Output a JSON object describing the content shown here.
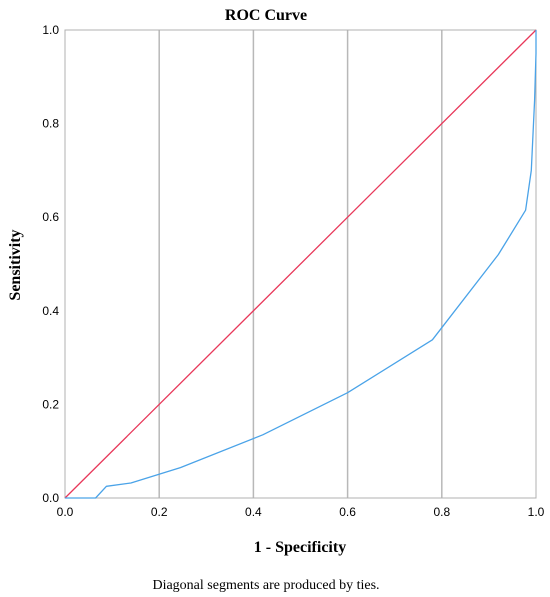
{
  "chart_data": {
    "type": "line",
    "title": "ROC Curve",
    "xlabel": "1 - Specificity",
    "ylabel": "Sensitivity",
    "xlim": [
      0,
      1
    ],
    "ylim": [
      0,
      1
    ],
    "x_ticks": [
      "0.0",
      "0.2",
      "0.4",
      "0.6",
      "0.8",
      "1.0"
    ],
    "y_ticks": [
      "0.0",
      "0.2",
      "0.4",
      "0.6",
      "0.8",
      "1.0"
    ],
    "grid": "vertical",
    "footnote": "Diagonal segments are produced by ties.",
    "colors": {
      "roc": "#4aa3e8",
      "reference": "#e8385a",
      "grid": "#b8b8b8",
      "frame": "#b0b0b0"
    },
    "series": [
      {
        "role": "roc",
        "x": [
          0.0,
          0.065,
          0.088,
          0.14,
          0.245,
          0.42,
          0.6,
          0.78,
          0.92,
          0.978,
          0.99,
          0.997,
          1.0,
          1.0
        ],
        "y": [
          0.0,
          0.0,
          0.025,
          0.032,
          0.065,
          0.135,
          0.225,
          0.338,
          0.52,
          0.615,
          0.7,
          0.85,
          0.95,
          1.0
        ]
      },
      {
        "role": "reference",
        "x": [
          0.0,
          1.0
        ],
        "y": [
          0.0,
          1.0
        ]
      }
    ]
  }
}
